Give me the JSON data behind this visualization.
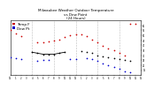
{
  "title": "Milwaukee Weather Outdoor Temperature\nvs Dew Point\n(24 Hours)",
  "title_fontsize": 3.0,
  "background_color": "#ffffff",
  "grid_color": "#bbbbbb",
  "temp_color": "#cc0000",
  "dew_color": "#0000cc",
  "black_color": "#000000",
  "marker_size": 1.5,
  "line_width": 0.6,
  "xlim": [
    0,
    24
  ],
  "ylim": [
    10,
    65
  ],
  "yticks": [
    15,
    20,
    25,
    30,
    35,
    40,
    45,
    50,
    55,
    60
  ],
  "ytick_labels": [
    "15",
    "20",
    "25",
    "30",
    "35",
    "40",
    "45",
    "50",
    "55",
    "60"
  ],
  "vlines": [
    4,
    8,
    12,
    16,
    20
  ],
  "temp_data": [
    [
      0,
      55
    ],
    [
      1,
      52
    ],
    [
      2,
      49
    ],
    [
      5,
      43
    ],
    [
      6,
      43
    ],
    [
      7,
      44
    ],
    [
      8,
      45
    ],
    [
      9,
      46
    ],
    [
      10,
      48
    ],
    [
      11,
      50
    ],
    [
      12,
      51
    ],
    [
      13,
      51
    ],
    [
      14,
      49
    ],
    [
      15,
      46
    ],
    [
      16,
      43
    ],
    [
      17,
      39
    ],
    [
      18,
      37
    ],
    [
      19,
      35
    ],
    [
      20,
      32
    ],
    [
      21,
      30
    ],
    [
      22,
      62
    ],
    [
      23,
      62
    ]
  ],
  "dew_data": [
    [
      0,
      28
    ],
    [
      1,
      27
    ],
    [
      2,
      26
    ],
    [
      5,
      24
    ],
    [
      6,
      25
    ],
    [
      7,
      25
    ],
    [
      11,
      26
    ],
    [
      12,
      26
    ],
    [
      14,
      27
    ],
    [
      15,
      26
    ],
    [
      16,
      24
    ],
    [
      17,
      22
    ],
    [
      18,
      20
    ],
    [
      19,
      18
    ],
    [
      20,
      16
    ],
    [
      21,
      14
    ],
    [
      22,
      13
    ]
  ],
  "black_data": [
    [
      4,
      33
    ],
    [
      5,
      32
    ],
    [
      6,
      31
    ],
    [
      7,
      31
    ],
    [
      8,
      31
    ],
    [
      9,
      32
    ],
    [
      10,
      33
    ],
    [
      13,
      34
    ],
    [
      14,
      33
    ],
    [
      15,
      32
    ],
    [
      16,
      30
    ],
    [
      17,
      29
    ],
    [
      18,
      28
    ],
    [
      19,
      27
    ],
    [
      20,
      26
    ],
    [
      21,
      25
    ],
    [
      22,
      24
    ]
  ],
  "black_line_segments": [
    [
      4,
      10
    ]
  ],
  "legend_items": [
    {
      "label": "Temp F",
      "color": "#cc0000"
    },
    {
      "label": "Dew Pt",
      "color": "#0000cc"
    }
  ],
  "legend_fontsize": 3.0
}
